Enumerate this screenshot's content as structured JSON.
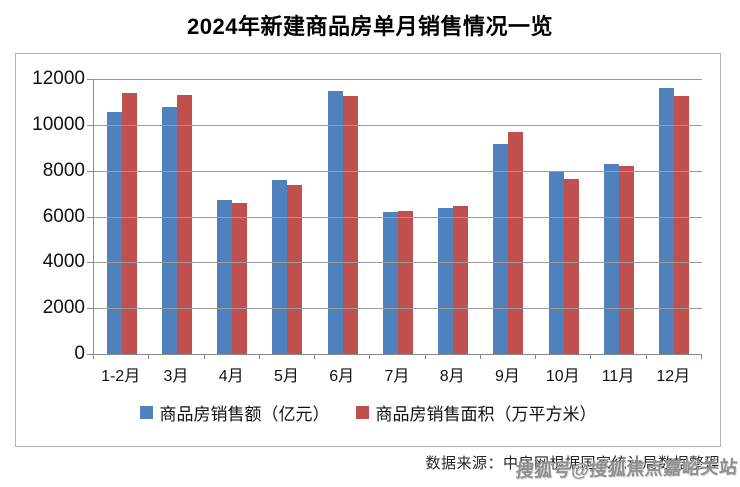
{
  "title": "2024年新建商品房单月销售情况一览",
  "footer": {
    "source": "数据来源：中房网根据国家统计局数据整理",
    "watermark": "搜狐号@搜狐焦点嘉峪关站"
  },
  "colors": {
    "series_sales_amount": "#4f81bd",
    "series_sales_area": "#c0504d"
  },
  "chart_data": {
    "type": "bar",
    "title": "2024年新建商品房单月销售情况一览",
    "categories": [
      "1-2月",
      "3月",
      "4月",
      "5月",
      "6月",
      "7月",
      "8月",
      "9月",
      "10月",
      "11月",
      "12月"
    ],
    "series": [
      {
        "name": "商品房销售额（亿元）",
        "color": "#4f81bd",
        "values": [
          10566,
          10789,
          6712,
          7598,
          11468,
          6197,
          6393,
          9157,
          7975,
          8270,
          11625
        ]
      },
      {
        "name": "商品房销售面积（万平方米）",
        "color": "#c0504d",
        "values": [
          11369,
          11299,
          6584,
          7390,
          11274,
          6233,
          6453,
          9682,
          7646,
          8188,
          11267
        ]
      }
    ],
    "xlabel": "",
    "ylabel": "",
    "ylim": [
      0,
      12000
    ],
    "yticks": [
      0,
      2000,
      4000,
      6000,
      8000,
      10000,
      12000
    ],
    "grid": true,
    "legend_position": "bottom"
  }
}
